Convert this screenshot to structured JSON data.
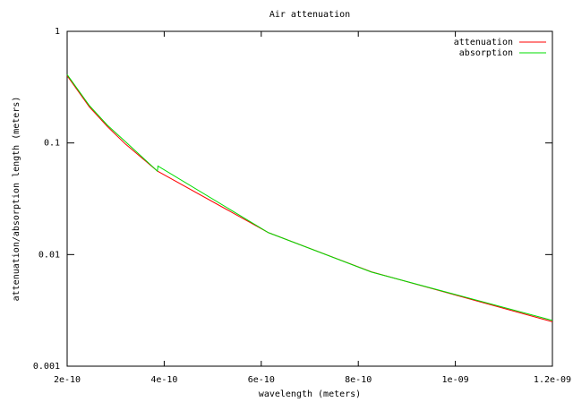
{
  "chart_data": {
    "type": "line",
    "title": "Air attenuation",
    "x_label": "wavelength (meters)",
    "y_label": "attenuation/absorption length (meters)",
    "log_y": true,
    "grid": false,
    "legend": "top-right",
    "xlim": [
      2e-10,
      1.2e-09
    ],
    "ylim": [
      0.001,
      1
    ],
    "xticks": [
      {
        "value": 2e-10,
        "label": "2e-10"
      },
      {
        "value": 4e-10,
        "label": "4e-10"
      },
      {
        "value": 6e-10,
        "label": "6e-10"
      },
      {
        "value": 8e-10,
        "label": "8e-10"
      },
      {
        "value": 1e-09,
        "label": "1e-09"
      },
      {
        "value": 1.2e-09,
        "label": "1.2e-09"
      }
    ],
    "yticks": [
      0.001,
      0.01,
      0.1,
      1
    ],
    "series": [
      {
        "name": "attenuation",
        "color": "#ff0000",
        "x": [
          2e-10,
          2.46e-10,
          2.83e-10,
          3.2e-10,
          3.86e-10,
          6.15e-10,
          8.27e-10,
          1.2e-09
        ],
        "values": [
          0.4,
          0.21,
          0.14,
          0.098,
          0.056,
          0.0157,
          0.007,
          0.0025
        ]
      },
      {
        "name": "absorption",
        "color": "#00dd00",
        "x": [
          2e-10,
          2.46e-10,
          2.83e-10,
          3.2e-10,
          3.86e-10,
          3.87e-10,
          6.15e-10,
          8.27e-10,
          1.2e-09
        ],
        "values": [
          0.41,
          0.216,
          0.144,
          0.103,
          0.056,
          0.062,
          0.0157,
          0.00697,
          0.00257
        ]
      }
    ]
  }
}
